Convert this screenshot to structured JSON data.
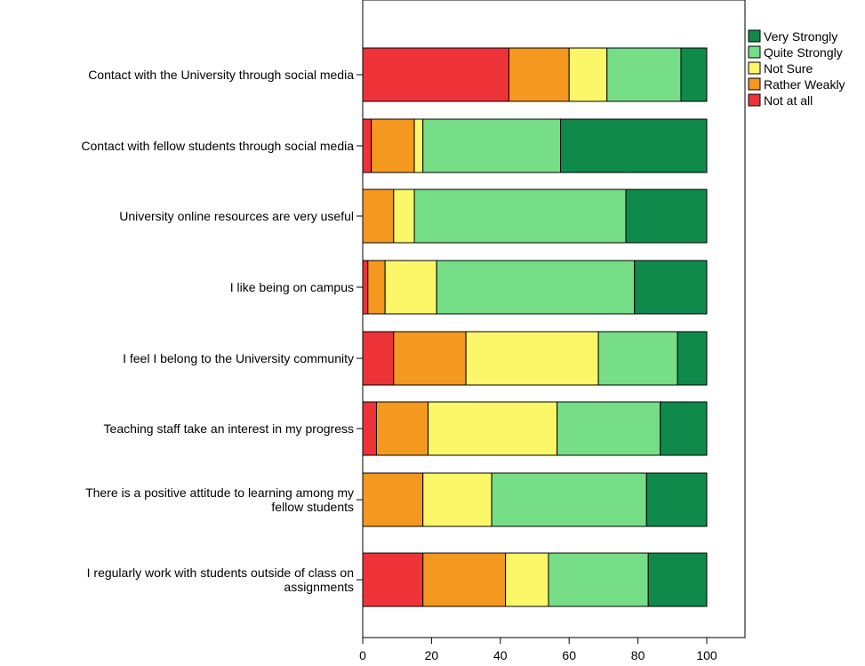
{
  "chart_data": {
    "type": "bar",
    "orientation": "horizontal",
    "stacked": true,
    "categories": [
      [
        "Contact with the University through social media"
      ],
      [
        "Contact with fellow students through social media"
      ],
      [
        "University online resources are very useful"
      ],
      [
        "I like being on campus"
      ],
      [
        "I feel I belong to the University community"
      ],
      [
        "Teaching staff take an interest in my progress"
      ],
      [
        "There is a positive attitude to learning among my",
        "fellow students"
      ],
      [
        "I regularly work with students outside of class on",
        "assignments"
      ]
    ],
    "series": [
      {
        "name": "Not at all",
        "color": "#ee3338",
        "values": [
          42.5,
          2.5,
          0,
          1.5,
          9,
          4,
          0,
          17.5
        ]
      },
      {
        "name": "Rather Weakly",
        "color": "#f5981f",
        "values": [
          17.5,
          12.5,
          9,
          5,
          21,
          15,
          17.5,
          24
        ]
      },
      {
        "name": "Not Sure",
        "color": "#fcf669",
        "values": [
          11,
          2.5,
          6,
          15,
          38.5,
          37.5,
          20,
          12.5
        ]
      },
      {
        "name": "Quite Strongly",
        "color": "#75de87",
        "values": [
          21.5,
          40,
          61.5,
          57.5,
          23,
          30,
          45,
          29
        ]
      },
      {
        "name": "Very Strongly",
        "color": "#0f8a4a",
        "values": [
          7.5,
          42.5,
          23.5,
          21,
          8.5,
          13.5,
          17.5,
          17
        ]
      }
    ],
    "xticks": [
      "0",
      "20",
      "40",
      "60",
      "80",
      "100"
    ],
    "xlim": [
      0,
      100
    ],
    "title": "",
    "xlabel": "",
    "ylabel": "",
    "grid": false,
    "legend_position": "top-right",
    "legend_order": [
      "Very Strongly",
      "Quite Strongly",
      "Not Sure",
      "Rather Weakly",
      "Not at all"
    ]
  }
}
